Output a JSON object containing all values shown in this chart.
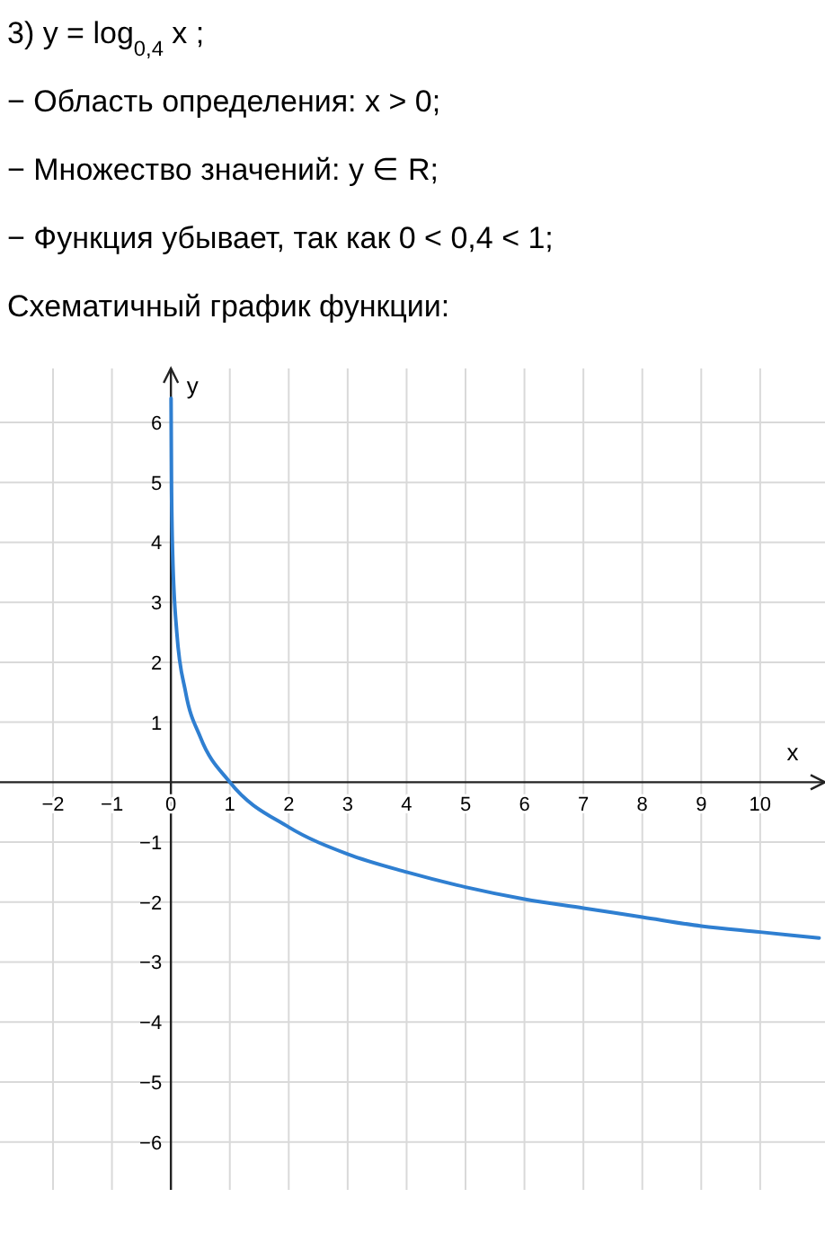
{
  "chart_data": {
    "type": "line",
    "title": "3) y = log$_{0,4}$ x ;",
    "annotations": [
      "− Область определения:  x > 0;",
      "− Множество значений:  y ∈ R;",
      "− Функция убывает, так как 0 < 0,4 < 1;",
      "Схематичный график функции:"
    ],
    "xlabel": "x",
    "ylabel": "y",
    "x": [
      0.003,
      0.01,
      0.03,
      0.1,
      0.25,
      0.5,
      1,
      2,
      3,
      4,
      5,
      6,
      7,
      8,
      9,
      10,
      11
    ],
    "series": [
      {
        "color": "#2f7fd1",
        "values": [
          6.4,
          5.0,
          3.8,
          2.5,
          1.5,
          0.75,
          0,
          -0.75,
          -1.2,
          -1.5,
          -1.75,
          -1.95,
          -2.1,
          -2.25,
          -2.4,
          -2.5,
          -2.6
        ]
      }
    ],
    "xlim": [
      -2.9,
      11.1
    ],
    "ylim": [
      -6.8,
      6.9
    ],
    "xticks": [
      {
        "value": -2,
        "label": "−2"
      },
      {
        "value": -1,
        "label": "−1"
      },
      0,
      1,
      2,
      3,
      4,
      5,
      6,
      7,
      8,
      9,
      10
    ],
    "yticks": [
      {
        "value": -6,
        "label": "−6"
      },
      {
        "value": -5,
        "label": "−5"
      },
      {
        "value": -4,
        "label": "−4"
      },
      {
        "value": -3,
        "label": "−3"
      },
      {
        "value": -2,
        "label": "−2"
      },
      {
        "value": -1,
        "label": "−1"
      },
      1,
      2,
      3,
      4,
      5,
      6
    ],
    "grid": true,
    "marker": "none",
    "line_style": "solid"
  }
}
